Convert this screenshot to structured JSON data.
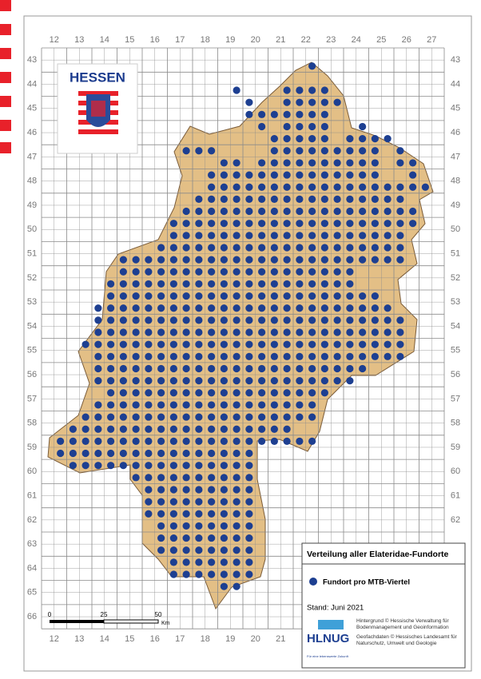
{
  "map": {
    "logo": "HESSEN",
    "top_labels": [
      "12",
      "13",
      "14",
      "15",
      "16",
      "17",
      "18",
      "19",
      "20",
      "21",
      "22",
      "23",
      "24",
      "25",
      "26",
      "27"
    ],
    "bottom_labels": [
      "12",
      "13",
      "14",
      "15",
      "16",
      "17",
      "18",
      "19",
      "20",
      "21"
    ],
    "left_labels": [
      "43",
      "44",
      "45",
      "46",
      "47",
      "48",
      "49",
      "50",
      "51",
      "52",
      "53",
      "54",
      "55",
      "56",
      "57",
      "58",
      "59",
      "60",
      "61",
      "62",
      "63",
      "64",
      "65",
      "66"
    ],
    "right_labels": [
      "43",
      "44",
      "45",
      "46",
      "47",
      "48",
      "49",
      "50",
      "51",
      "52",
      "53",
      "54",
      "55",
      "56",
      "57",
      "58",
      "59",
      "60",
      "61",
      "62"
    ],
    "records": [
      [
        1,
        21,
        21
      ],
      [
        3,
        15,
        15
      ],
      [
        3,
        19,
        22
      ],
      [
        4,
        16,
        16
      ],
      [
        4,
        19,
        23
      ],
      [
        5,
        16,
        17
      ],
      [
        5,
        18,
        22
      ],
      [
        6,
        17,
        17
      ],
      [
        6,
        19,
        22
      ],
      [
        6,
        25,
        25
      ],
      [
        7,
        18,
        22
      ],
      [
        7,
        24,
        26
      ],
      [
        7,
        27,
        27
      ],
      [
        8,
        11,
        13
      ],
      [
        8,
        18,
        26
      ],
      [
        8,
        28,
        28
      ],
      [
        9,
        14,
        15
      ],
      [
        9,
        17,
        26
      ],
      [
        9,
        28,
        29
      ],
      [
        10,
        13,
        26
      ],
      [
        10,
        29,
        29
      ],
      [
        11,
        13,
        30
      ],
      [
        12,
        12,
        28
      ],
      [
        13,
        11,
        29
      ],
      [
        14,
        10,
        29
      ],
      [
        15,
        10,
        28
      ],
      [
        16,
        9,
        28
      ],
      [
        17,
        6,
        28
      ],
      [
        18,
        6,
        24
      ],
      [
        19,
        5,
        24
      ],
      [
        20,
        5,
        26
      ],
      [
        21,
        4,
        27
      ],
      [
        22,
        4,
        28
      ],
      [
        23,
        4,
        28
      ],
      [
        24,
        3,
        28
      ],
      [
        25,
        4,
        28
      ],
      [
        26,
        4,
        25
      ],
      [
        27,
        4,
        24
      ],
      [
        28,
        5,
        22
      ],
      [
        29,
        4,
        21
      ],
      [
        30,
        3,
        21
      ],
      [
        31,
        2,
        19
      ],
      [
        32,
        1,
        21
      ],
      [
        33,
        1,
        16
      ],
      [
        34,
        2,
        16
      ],
      [
        35,
        7,
        16
      ],
      [
        36,
        8,
        16
      ],
      [
        37,
        8,
        16
      ],
      [
        38,
        8,
        16
      ],
      [
        39,
        9,
        16
      ],
      [
        40,
        9,
        16
      ],
      [
        41,
        9,
        16
      ],
      [
        42,
        10,
        16
      ],
      [
        43,
        10,
        16
      ],
      [
        44,
        14,
        15
      ]
    ],
    "scale": {
      "labels": [
        "0",
        "25",
        "50"
      ],
      "unit": "Km"
    },
    "legend": {
      "title": "Verteilung aller Elateridae-Fundorte",
      "item": "Fundort pro MTB-Viertel",
      "date": "Stand: Juni 2021",
      "credit1": "Hintergrund © Hessische Verwaltung für Bodenmanagement und Geoinformation",
      "credit2": "Geofachdaten © Hessisches Landesamt für Naturschutz, Umwelt und Geologie",
      "agency": "HLNUG",
      "agency_sub": "Für eine lebenswerte Zukunft"
    }
  }
}
